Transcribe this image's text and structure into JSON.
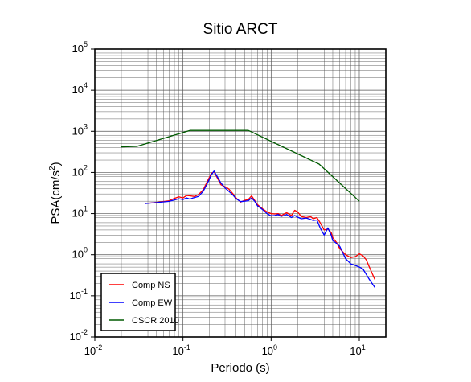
{
  "chart_data": {
    "type": "line",
    "title": "Sitio ARCT",
    "xlabel": "Periodo (s)",
    "ylabel_main": "PSA(cm/s",
    "ylabel_sup": "2",
    "ylabel_close": ")",
    "x_scale": "log",
    "y_scale": "log",
    "xlim": [
      0.01,
      20
    ],
    "ylim": [
      0.01,
      100000
    ],
    "grid": true,
    "legend_position": "bottom-left",
    "x_ticks": [
      {
        "value": 0.01,
        "base": "10",
        "exp": "-2"
      },
      {
        "value": 0.1,
        "base": "10",
        "exp": "-1"
      },
      {
        "value": 1,
        "base": "10",
        "exp": "0"
      },
      {
        "value": 10,
        "base": "10",
        "exp": "1"
      }
    ],
    "y_ticks": [
      {
        "value": 0.01,
        "base": "10",
        "exp": "-2"
      },
      {
        "value": 0.1,
        "base": "10",
        "exp": "-1"
      },
      {
        "value": 1,
        "base": "10",
        "exp": "0"
      },
      {
        "value": 10,
        "base": "10",
        "exp": "1"
      },
      {
        "value": 100,
        "base": "10",
        "exp": "2"
      },
      {
        "value": 1000,
        "base": "10",
        "exp": "3"
      },
      {
        "value": 10000,
        "base": "10",
        "exp": "4"
      },
      {
        "value": 100000,
        "base": "10",
        "exp": "5"
      }
    ],
    "series": [
      {
        "name": "Comp NS",
        "color": "#ff0000",
        "points": [
          [
            0.037,
            17.5
          ],
          [
            0.05,
            18.8
          ],
          [
            0.07,
            20.5
          ],
          [
            0.08,
            23.5
          ],
          [
            0.09,
            25.5
          ],
          [
            0.1,
            24
          ],
          [
            0.11,
            27.5
          ],
          [
            0.12,
            27
          ],
          [
            0.135,
            26
          ],
          [
            0.15,
            29
          ],
          [
            0.17,
            38
          ],
          [
            0.19,
            62
          ],
          [
            0.21,
            95
          ],
          [
            0.225,
            104
          ],
          [
            0.24,
            80
          ],
          [
            0.27,
            50
          ],
          [
            0.3,
            45
          ],
          [
            0.33,
            40
          ],
          [
            0.37,
            30
          ],
          [
            0.4,
            24
          ],
          [
            0.45,
            19
          ],
          [
            0.5,
            21
          ],
          [
            0.55,
            22
          ],
          [
            0.6,
            27
          ],
          [
            0.65,
            21
          ],
          [
            0.7,
            16.5
          ],
          [
            0.8,
            13
          ],
          [
            0.9,
            11
          ],
          [
            1.0,
            10
          ],
          [
            1.1,
            9.8
          ],
          [
            1.2,
            10
          ],
          [
            1.3,
            9
          ],
          [
            1.5,
            10.5
          ],
          [
            1.7,
            9
          ],
          [
            1.85,
            12
          ],
          [
            2.0,
            11
          ],
          [
            2.2,
            8.5
          ],
          [
            2.5,
            8
          ],
          [
            2.8,
            8.5
          ],
          [
            3.0,
            7.5
          ],
          [
            3.3,
            8
          ],
          [
            3.6,
            6
          ],
          [
            4.0,
            4
          ],
          [
            4.4,
            4.2
          ],
          [
            4.8,
            3.5
          ],
          [
            5.0,
            2.6
          ],
          [
            5.5,
            2
          ],
          [
            6.0,
            1.4
          ],
          [
            7.0,
            1.0
          ],
          [
            8.0,
            0.85
          ],
          [
            9.0,
            0.9
          ],
          [
            10.0,
            1.05
          ],
          [
            11.0,
            0.95
          ],
          [
            12.0,
            0.75
          ],
          [
            13.0,
            0.5
          ],
          [
            15.0,
            0.25
          ]
        ]
      },
      {
        "name": "Comp EW",
        "color": "#0000ff",
        "points": [
          [
            0.037,
            17.5
          ],
          [
            0.05,
            18.5
          ],
          [
            0.07,
            19.8
          ],
          [
            0.08,
            21.5
          ],
          [
            0.09,
            23
          ],
          [
            0.1,
            22
          ],
          [
            0.11,
            24
          ],
          [
            0.12,
            22.5
          ],
          [
            0.13,
            24
          ],
          [
            0.15,
            26
          ],
          [
            0.17,
            35
          ],
          [
            0.19,
            55
          ],
          [
            0.21,
            88
          ],
          [
            0.225,
            108
          ],
          [
            0.24,
            85
          ],
          [
            0.27,
            55
          ],
          [
            0.3,
            42
          ],
          [
            0.33,
            35
          ],
          [
            0.37,
            28
          ],
          [
            0.4,
            23
          ],
          [
            0.45,
            19.5
          ],
          [
            0.5,
            20
          ],
          [
            0.55,
            20.5
          ],
          [
            0.6,
            24
          ],
          [
            0.65,
            20
          ],
          [
            0.7,
            15.5
          ],
          [
            0.8,
            12.5
          ],
          [
            0.9,
            10
          ],
          [
            1.0,
            8.8
          ],
          [
            1.1,
            9
          ],
          [
            1.2,
            9.5
          ],
          [
            1.3,
            8.5
          ],
          [
            1.5,
            9.5
          ],
          [
            1.7,
            8
          ],
          [
            1.85,
            9
          ],
          [
            2.0,
            8.2
          ],
          [
            2.2,
            7.5
          ],
          [
            2.5,
            7.8
          ],
          [
            2.8,
            7.2
          ],
          [
            3.0,
            6.8
          ],
          [
            3.3,
            7
          ],
          [
            3.6,
            4.5
          ],
          [
            4.0,
            3
          ],
          [
            4.4,
            4.5
          ],
          [
            4.8,
            3
          ],
          [
            5.0,
            2.2
          ],
          [
            5.5,
            1.9
          ],
          [
            6.0,
            1.6
          ],
          [
            7.0,
            0.8
          ],
          [
            8.0,
            0.6
          ],
          [
            9.0,
            0.55
          ],
          [
            10.0,
            0.5
          ],
          [
            11.0,
            0.45
          ],
          [
            12.0,
            0.33
          ],
          [
            13.0,
            0.25
          ],
          [
            15.0,
            0.16
          ]
        ]
      },
      {
        "name": "CSCR 2010",
        "color": "#005a00",
        "points": [
          [
            0.02,
            420
          ],
          [
            0.03,
            430
          ],
          [
            0.12,
            1050
          ],
          [
            0.55,
            1050
          ],
          [
            3.5,
            160
          ],
          [
            10.0,
            20
          ]
        ]
      }
    ]
  }
}
